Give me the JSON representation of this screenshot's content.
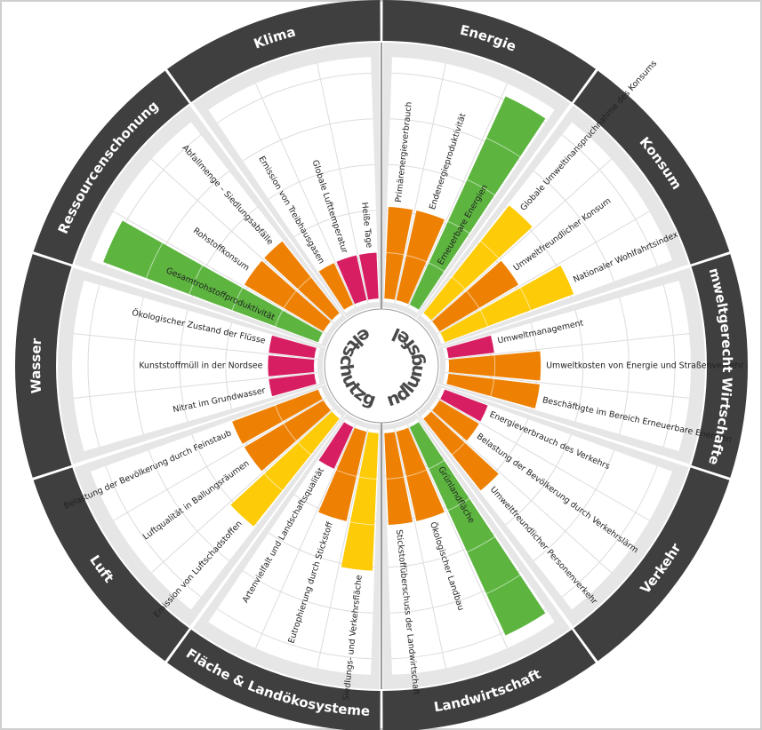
{
  "colors": {
    "ring": "#3f3f3f",
    "background_sector": "#e6e6e6",
    "inner_panel": "#ffffff",
    "separator": "#9a9a9a",
    "grid": "#dcdcdc",
    "center_text": "#4a4a4a",
    "ring_text": "#ffffff",
    "statuses": {
      "green": "#5db540",
      "yellow": "#fdcb07",
      "orange": "#ee8104",
      "red": "#d81e63"
    }
  },
  "chart_data": {
    "type": "radial_bar",
    "halves": [
      {
        "label": "Umweltschutzgüter",
        "side": "left"
      },
      {
        "label": "Handlungsfelder",
        "side": "right"
      }
    ],
    "scale": {
      "levels": 5
    },
    "sectors": [
      {
        "label": "Energie",
        "indicators": [
          {
            "label": "Primärenergieverbrauch",
            "status": "orange",
            "value": 2
          },
          {
            "label": "Endenergieproduktivität",
            "status": "orange",
            "value": 2
          },
          {
            "label": "Erneuerbare Energien",
            "status": "green",
            "value": 5
          }
        ]
      },
      {
        "label": "Konsum",
        "indicators": [
          {
            "label": "Globale Umweltinanspruchnahme des Konsums",
            "status": "yellow",
            "value": 3
          },
          {
            "label": "Umweltfreundlicher Konsum",
            "status": "orange",
            "value": 2
          },
          {
            "label": "Nationaler Wohlfahrtsindex",
            "status": "yellow",
            "value": 3
          }
        ]
      },
      {
        "label": "Umweltgerecht Wirtschaften",
        "indicators": [
          {
            "label": "Umweltmanagement",
            "status": "red",
            "value": 1
          },
          {
            "label": "Umweltkosten von Energie und Straßenverkehr",
            "status": "orange",
            "value": 2
          },
          {
            "label": "Beschäftigte im Bereich Erneuerbare Energien",
            "status": "orange",
            "value": 2
          }
        ]
      },
      {
        "label": "Verkehr",
        "indicators": [
          {
            "label": "Energieverbrauch des Verkehrs",
            "status": "red",
            "value": 1
          },
          {
            "label": "Belastung der Bevölkerung durch Verkehrslärm",
            "status": "orange",
            "value": 1
          },
          {
            "label": "Umweltfreundlicher Personenverkehr",
            "status": "orange",
            "value": 2
          }
        ]
      },
      {
        "label": "Landwirtschaft",
        "indicators": [
          {
            "label": "Grünlandfläche",
            "status": "green",
            "value": 5
          },
          {
            "label": "Ökologischer Landbau",
            "status": "orange",
            "value": 2
          },
          {
            "label": "Stickstoffüberschuss der Landwirtschaft",
            "status": "orange",
            "value": 2
          }
        ]
      },
      {
        "label": "Fläche & Landökosysteme",
        "indicators": [
          {
            "label": "Siedlungs- und Verkehrsfläche",
            "status": "yellow",
            "value": 3
          },
          {
            "label": "Eutrophierung durch Stickstoff",
            "status": "orange",
            "value": 2
          },
          {
            "label": "Artenvielfalt und Landschaftsqualität",
            "status": "red",
            "value": 1
          }
        ]
      },
      {
        "label": "Luft",
        "indicators": [
          {
            "label": "Emission von Luftschadstoffen",
            "status": "yellow",
            "value": 3
          },
          {
            "label": "Luftqualität in Ballungsräumen",
            "status": "orange",
            "value": 2
          },
          {
            "label": "Belastung der Bevölkerung durch Feinstaub",
            "status": "orange",
            "value": 2
          }
        ]
      },
      {
        "label": "Wasser",
        "indicators": [
          {
            "label": "Nitrat im Grundwasser",
            "status": "red",
            "value": 1
          },
          {
            "label": "Kunststoffmüll in der Nordsee",
            "status": "red",
            "value": 1
          },
          {
            "label": "Ökologischer Zustand der Flüsse",
            "status": "red",
            "value": 1
          }
        ]
      },
      {
        "label": "Ressourcenschonung",
        "indicators": [
          {
            "label": "Gesamtrohstoffproduktivität",
            "status": "green",
            "value": 5
          },
          {
            "label": "Rohstoffkonsum",
            "status": "orange",
            "value": 2
          },
          {
            "label": "Abfallmenge – Siedlungsabfälle",
            "status": "orange",
            "value": 2
          }
        ]
      },
      {
        "label": "Klima",
        "indicators": [
          {
            "label": "Emission von Treibhausgasen",
            "status": "orange",
            "value": 1
          },
          {
            "label": "Globale Lufttemperatur",
            "status": "red",
            "value": 1
          },
          {
            "label": "Heiße Tage",
            "status": "red",
            "value": 1
          }
        ]
      }
    ]
  }
}
